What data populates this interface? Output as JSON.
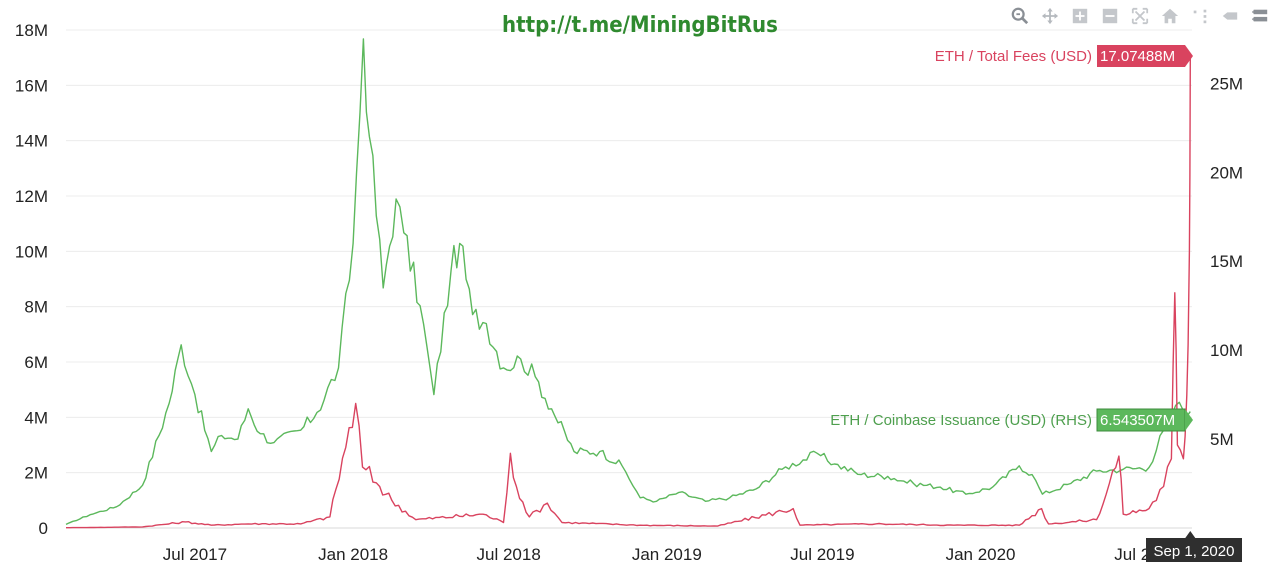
{
  "watermark": "http://t.me/MiningBitRus",
  "toolbar": {
    "icons": [
      "zoom-icon",
      "pan-icon",
      "zoom-in-icon",
      "zoom-out-icon",
      "autoscale-icon",
      "reset-axes-icon",
      "spike-lines-icon",
      "hover-closest-icon",
      "hover-compare-icon"
    ]
  },
  "chart_data": {
    "type": "line",
    "x_axis": {
      "type": "date",
      "range": [
        "2017-02-01",
        "2020-09-03"
      ],
      "tick_labels": [
        "Jul 2017",
        "Jan 2018",
        "Jul 2018",
        "Jan 2019",
        "Jul 2019",
        "Jan 2020",
        "Jul 20"
      ],
      "tick_dates": [
        "2017-07-01",
        "2018-01-01",
        "2018-07-01",
        "2019-01-01",
        "2019-07-01",
        "2020-01-01",
        "2020-07-01"
      ]
    },
    "y_left": {
      "range": [
        0,
        18000000
      ],
      "tick_values": [
        0,
        2000000,
        4000000,
        6000000,
        8000000,
        10000000,
        12000000,
        14000000,
        16000000,
        18000000
      ],
      "tick_labels": [
        "0",
        "2M",
        "4M",
        "6M",
        "8M",
        "10M",
        "12M",
        "14M",
        "16M",
        "18M"
      ]
    },
    "y_right": {
      "range": [
        0,
        28000000
      ],
      "tick_values": [
        5000000,
        10000000,
        15000000,
        20000000,
        25000000
      ],
      "tick_labels": [
        "5M",
        "10M",
        "15M",
        "20M",
        "25M"
      ]
    },
    "grid": true,
    "series": [
      {
        "name": "ETH / Coinbase Issuance (USD) (RHS)",
        "axis": "right",
        "color": "#5cb85c",
        "last_value_label": "6.543507M",
        "points": [
          [
            "2017-02-01",
            200000
          ],
          [
            "2017-03-01",
            750000
          ],
          [
            "2017-04-01",
            1200000
          ],
          [
            "2017-05-01",
            2400000
          ],
          [
            "2017-06-01",
            7000000
          ],
          [
            "2017-06-15",
            10300000
          ],
          [
            "2017-07-01",
            7500000
          ],
          [
            "2017-07-20",
            4300000
          ],
          [
            "2017-08-01",
            5200000
          ],
          [
            "2017-08-20",
            5000000
          ],
          [
            "2017-09-01",
            6700000
          ],
          [
            "2017-09-15",
            5300000
          ],
          [
            "2017-10-01",
            4800000
          ],
          [
            "2017-11-01",
            5500000
          ],
          [
            "2017-11-20",
            6500000
          ],
          [
            "2017-12-15",
            9000000
          ],
          [
            "2018-01-01",
            16000000
          ],
          [
            "2018-01-13",
            27500000
          ],
          [
            "2018-01-20",
            22000000
          ],
          [
            "2018-02-05",
            13500000
          ],
          [
            "2018-02-20",
            18500000
          ],
          [
            "2018-03-01",
            16600000
          ],
          [
            "2018-03-20",
            12500000
          ],
          [
            "2018-04-05",
            7500000
          ],
          [
            "2018-04-25",
            14500000
          ],
          [
            "2018-05-05",
            16000000
          ],
          [
            "2018-05-20",
            12000000
          ],
          [
            "2018-06-05",
            11500000
          ],
          [
            "2018-06-25",
            9000000
          ],
          [
            "2018-07-15",
            9500000
          ],
          [
            "2018-08-01",
            8500000
          ],
          [
            "2018-08-20",
            6700000
          ],
          [
            "2018-09-15",
            4300000
          ],
          [
            "2018-10-15",
            4300000
          ],
          [
            "2018-11-10",
            3500000
          ],
          [
            "2018-12-01",
            1700000
          ],
          [
            "2018-12-20",
            1500000
          ],
          [
            "2019-01-15",
            2000000
          ],
          [
            "2019-02-15",
            1500000
          ],
          [
            "2019-03-15",
            1700000
          ],
          [
            "2019-04-15",
            2200000
          ],
          [
            "2019-05-15",
            3300000
          ],
          [
            "2019-06-25",
            4200000
          ],
          [
            "2019-07-15",
            3600000
          ],
          [
            "2019-08-15",
            3000000
          ],
          [
            "2019-09-15",
            2900000
          ],
          [
            "2019-10-15",
            2500000
          ],
          [
            "2019-11-15",
            2300000
          ],
          [
            "2019-12-15",
            1900000
          ],
          [
            "2020-01-15",
            2300000
          ],
          [
            "2020-02-15",
            3500000
          ],
          [
            "2020-03-01",
            3000000
          ],
          [
            "2020-03-13",
            1900000
          ],
          [
            "2020-04-15",
            2500000
          ],
          [
            "2020-05-15",
            3200000
          ],
          [
            "2020-06-15",
            3300000
          ],
          [
            "2020-07-15",
            3400000
          ],
          [
            "2020-08-01",
            5500000
          ],
          [
            "2020-08-15",
            6900000
          ],
          [
            "2020-09-01",
            6543507
          ]
        ]
      },
      {
        "name": "ETH / Total Fees (USD)",
        "axis": "left",
        "color": "#d9435f",
        "last_value_label": "17.07488M",
        "points": [
          [
            "2017-02-01",
            10000
          ],
          [
            "2017-05-01",
            40000
          ],
          [
            "2017-06-20",
            220000
          ],
          [
            "2017-07-20",
            100000
          ],
          [
            "2017-09-01",
            150000
          ],
          [
            "2017-11-01",
            150000
          ],
          [
            "2017-12-05",
            400000
          ],
          [
            "2017-12-12",
            1400000
          ],
          [
            "2018-01-04",
            4500000
          ],
          [
            "2018-01-12",
            2200000
          ],
          [
            "2018-02-01",
            1500000
          ],
          [
            "2018-02-15",
            1000000
          ],
          [
            "2018-03-15",
            300000
          ],
          [
            "2018-06-01",
            500000
          ],
          [
            "2018-06-25",
            200000
          ],
          [
            "2018-07-03",
            2700000
          ],
          [
            "2018-07-10",
            1500000
          ],
          [
            "2018-07-25",
            400000
          ],
          [
            "2018-08-15",
            900000
          ],
          [
            "2018-09-01",
            200000
          ],
          [
            "2018-12-01",
            100000
          ],
          [
            "2019-03-01",
            70000
          ],
          [
            "2019-05-28",
            700000
          ],
          [
            "2019-06-05",
            100000
          ],
          [
            "2019-09-01",
            150000
          ],
          [
            "2019-12-01",
            100000
          ],
          [
            "2020-02-15",
            100000
          ],
          [
            "2020-03-12",
            700000
          ],
          [
            "2020-03-20",
            150000
          ],
          [
            "2020-05-15",
            300000
          ],
          [
            "2020-06-10",
            2600000
          ],
          [
            "2020-06-15",
            500000
          ],
          [
            "2020-07-15",
            700000
          ],
          [
            "2020-08-01",
            1500000
          ],
          [
            "2020-08-10",
            2500000
          ],
          [
            "2020-08-14",
            8500000
          ],
          [
            "2020-08-17",
            3000000
          ],
          [
            "2020-08-24",
            2500000
          ],
          [
            "2020-08-28",
            4800000
          ],
          [
            "2020-08-31",
            10000000
          ],
          [
            "2020-09-01",
            17074880
          ]
        ]
      }
    ],
    "hover_date_label": "Sep 1, 2020"
  }
}
